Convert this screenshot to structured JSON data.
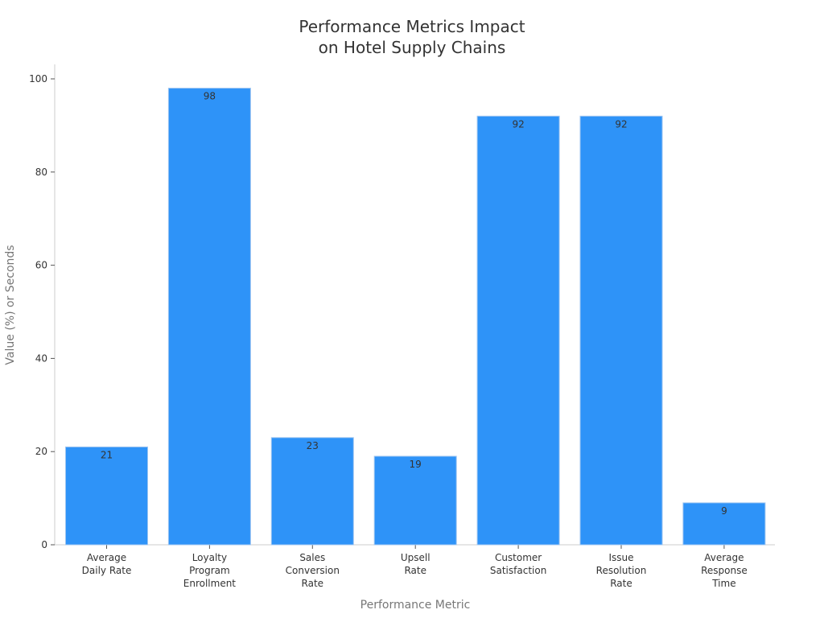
{
  "chart_data": {
    "type": "bar",
    "title": [
      "Performance Metrics Impact",
      "on Hotel Supply Chains"
    ],
    "xlabel": "Performance Metric",
    "ylabel": "Value (%) or Seconds",
    "categories": [
      [
        "Average",
        "Daily Rate"
      ],
      [
        "Loyalty",
        "Program",
        "Enrollment"
      ],
      [
        "Sales",
        "Conversion",
        "Rate"
      ],
      [
        "Upsell",
        "Rate"
      ],
      [
        "Customer",
        "Satisfaction"
      ],
      [
        "Issue",
        "Resolution",
        "Rate"
      ],
      [
        "Average",
        "Response",
        "Time"
      ]
    ],
    "values": [
      21,
      98,
      23,
      19,
      92,
      92,
      9
    ],
    "ylim": [
      0,
      100
    ],
    "yticks": [
      0,
      20,
      40,
      60,
      80,
      100
    ],
    "grid": false,
    "legend": "none",
    "bar_color": "#2e93f8"
  }
}
